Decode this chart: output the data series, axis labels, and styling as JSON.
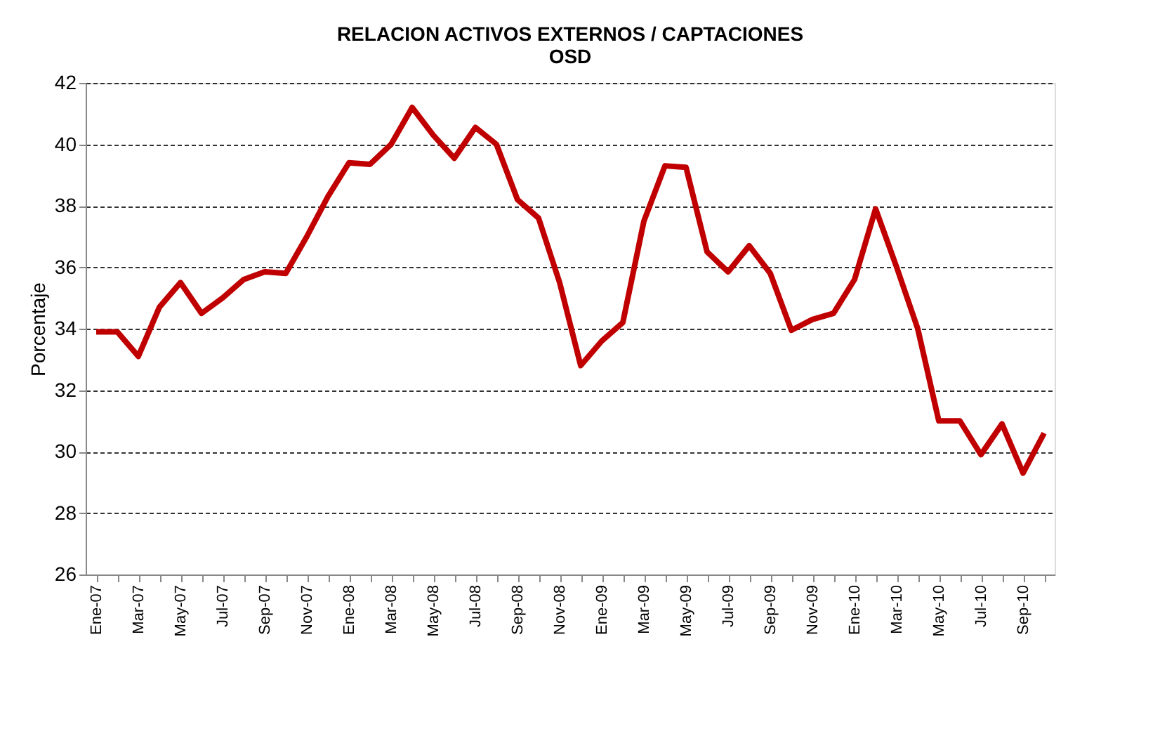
{
  "chart_data": {
    "type": "line",
    "title": "RELACION ACTIVOS EXTERNOS / CAPTACIONES",
    "subtitle": "OSD",
    "ylabel": "Porcentaje",
    "categories": [
      "Ene-07",
      null,
      "Mar-07",
      null,
      "May-07",
      null,
      "Jul-07",
      null,
      "Sep-07",
      null,
      "Nov-07",
      null,
      "Ene-08",
      null,
      "Mar-08",
      null,
      "May-08",
      null,
      "Jul-08",
      null,
      "Sep-08",
      null,
      "Nov-08",
      null,
      "Ene-09",
      null,
      "Mar-09",
      null,
      "May-09",
      null,
      "Jul-09",
      null,
      "Sep-09",
      null,
      "Nov-09",
      null,
      "Ene-10",
      null,
      "Mar-10",
      null,
      "May-10",
      null,
      "Jul-10",
      null,
      "Sep-10",
      null
    ],
    "series": [
      {
        "color": "#c00000",
        "values": [
          33.9,
          33.9,
          33.1,
          34.7,
          35.5,
          34.5,
          35.0,
          35.6,
          35.85,
          35.8,
          37.0,
          38.3,
          39.4,
          39.35,
          40.0,
          41.2,
          40.3,
          39.55,
          40.55,
          40.0,
          38.2,
          37.6,
          35.5,
          32.8,
          33.6,
          34.2,
          37.5,
          39.3,
          39.25,
          36.5,
          35.85,
          36.7,
          35.8,
          33.95,
          34.3,
          34.5,
          35.6,
          37.9,
          36.0,
          34.0,
          31.0,
          31.0,
          29.9,
          30.9,
          29.3,
          30.6
        ]
      }
    ],
    "ylim": [
      26,
      42
    ],
    "yticks": [
      26,
      28,
      30,
      32,
      34,
      36,
      38,
      40,
      42
    ],
    "grid": "y",
    "legend": false,
    "marker": "none",
    "line_style": "solid"
  }
}
